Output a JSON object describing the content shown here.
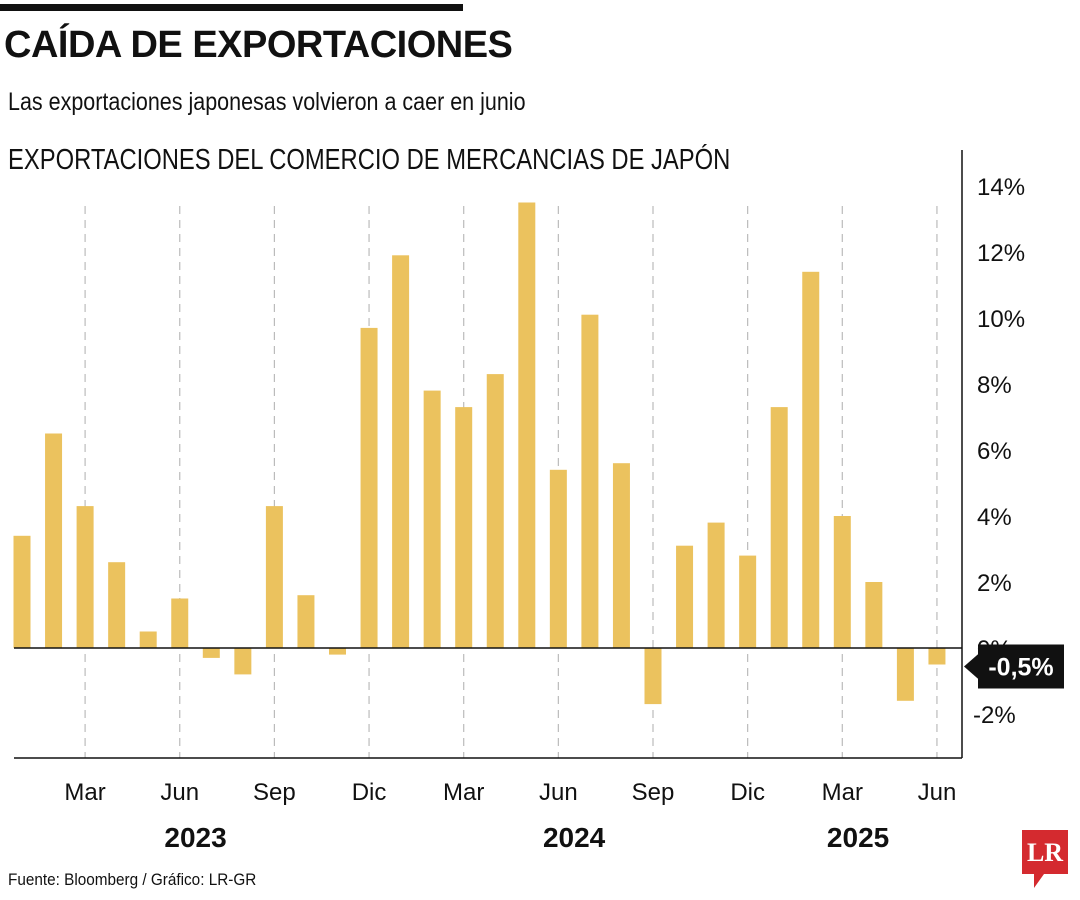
{
  "header": {
    "title": "CAÍDA DE EXPORTACIONES",
    "subtitle": "Las exportaciones japonesas volvieron a caer en junio"
  },
  "footer": {
    "source": "Fuente: Bloomberg / Gráfico: LR-GR",
    "logo_text": "LR"
  },
  "colors": {
    "bar": "#EBC25E",
    "text": "#111111",
    "grid": "#BBBBBB",
    "callout_bg": "#111111",
    "logo": "#D42A2F"
  },
  "chart_data": {
    "type": "bar",
    "title": "EXPORTACIONES DEL COMERCIO DE MERCANCIAS DE JAPÓN",
    "xlabel": "",
    "ylabel": "",
    "ylim": [
      -3.3,
      15
    ],
    "yticks": [
      {
        "value": 14,
        "label": "14%"
      },
      {
        "value": 12,
        "label": "12%"
      },
      {
        "value": 10,
        "label": "10%"
      },
      {
        "value": 8,
        "label": "8%"
      },
      {
        "value": 6,
        "label": "6%"
      },
      {
        "value": 4,
        "label": "4%"
      },
      {
        "value": 2,
        "label": "2%"
      },
      {
        "value": 0,
        "label": "0%"
      },
      {
        "value": -2,
        "label": "-2%"
      }
    ],
    "categories": [
      "Ene 2023",
      "Feb 2023",
      "Mar 2023",
      "Abr 2023",
      "May 2023",
      "Jun 2023",
      "Jul 2023",
      "Ago 2023",
      "Sep 2023",
      "Oct 2023",
      "Nov 2023",
      "Dic 2023",
      "Ene 2024",
      "Feb 2024",
      "Mar 2024",
      "Abr 2024",
      "May 2024",
      "Jun 2024",
      "Jul 2024",
      "Ago 2024",
      "Sep 2024",
      "Oct 2024",
      "Nov 2024",
      "Dic 2024",
      "Ene 2025",
      "Feb 2025",
      "Mar 2025",
      "Abr 2025",
      "May 2025",
      "Jun 2025"
    ],
    "values": [
      3.4,
      6.5,
      4.3,
      2.6,
      0.5,
      1.5,
      -0.3,
      -0.8,
      4.3,
      1.6,
      -0.2,
      9.7,
      11.9,
      7.8,
      7.3,
      8.3,
      13.5,
      5.4,
      10.1,
      5.6,
      -1.7,
      3.1,
      3.8,
      2.8,
      7.3,
      11.4,
      4.0,
      2.0,
      -1.6,
      -0.5
    ],
    "month_markers": [
      {
        "index": 2,
        "label": "Mar"
      },
      {
        "index": 5,
        "label": "Jun"
      },
      {
        "index": 8,
        "label": "Sep"
      },
      {
        "index": 11,
        "label": "Dic"
      },
      {
        "index": 14,
        "label": "Mar"
      },
      {
        "index": 17,
        "label": "Jun"
      },
      {
        "index": 20,
        "label": "Sep"
      },
      {
        "index": 23,
        "label": "Dic"
      },
      {
        "index": 26,
        "label": "Mar"
      },
      {
        "index": 29,
        "label": "Jun"
      }
    ],
    "year_labels": [
      {
        "index": 5.5,
        "label": "2023"
      },
      {
        "index": 17.5,
        "label": "2024"
      },
      {
        "index": 26.5,
        "label": "2025"
      }
    ],
    "callout": {
      "index": 29,
      "label": "-0,5%"
    }
  }
}
